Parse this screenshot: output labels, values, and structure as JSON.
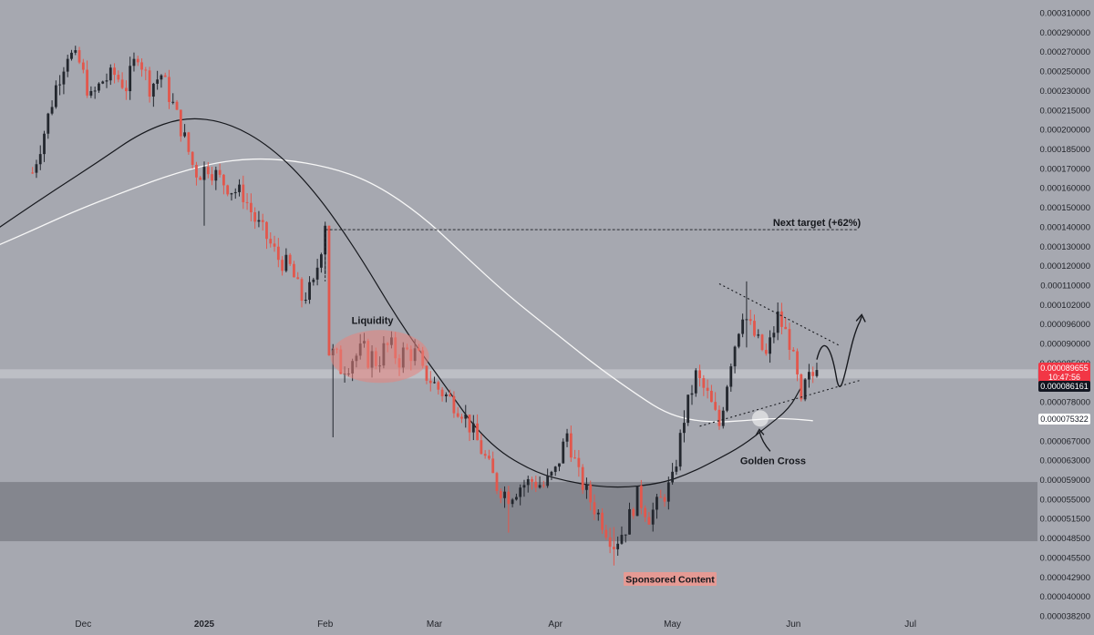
{
  "chart_data": {
    "type": "candlestick",
    "title": "",
    "y_axis": {
      "scale": "log",
      "side": "right",
      "ticks": [
        "0.000310000",
        "0.000290000",
        "0.000270000",
        "0.000250000",
        "0.000230000",
        "0.000215000",
        "0.000200000",
        "0.000185000",
        "0.000170000",
        "0.000160000",
        "0.000150000",
        "0.000140000",
        "0.000130000",
        "0.000120000",
        "0.000110000",
        "0.000102000",
        "0.000096000",
        "0.000090000",
        "0.000085000",
        "0.000081000",
        "0.000078000",
        "0.000072000",
        "0.000067000",
        "0.000063000",
        "0.000059000",
        "0.000055000",
        "0.000051500",
        "0.000048500",
        "0.000045500",
        "0.000042900",
        "0.000040000",
        "0.000038200"
      ]
    },
    "x_axis": {
      "ticks": [
        {
          "label": "Dec",
          "day": -31,
          "bold": false
        },
        {
          "label": "2025",
          "day": 0,
          "bold": true
        },
        {
          "label": "Feb",
          "day": 31,
          "bold": false
        },
        {
          "label": "Mar",
          "day": 59,
          "bold": false
        },
        {
          "label": "Apr",
          "day": 90,
          "bold": false
        },
        {
          "label": "May",
          "day": 120,
          "bold": false
        },
        {
          "label": "Jun",
          "day": 151,
          "bold": false
        },
        {
          "label": "Jul",
          "day": 181,
          "bold": false
        }
      ]
    },
    "price_labels": {
      "current": {
        "value": "0.000089655",
        "countdown": "10:47:56",
        "color": "#f23645"
      },
      "level1": {
        "value": "0.000086161",
        "color": "#131722"
      },
      "level2": {
        "value": "0.000075322",
        "color": "#ffffff"
      }
    },
    "annotations": {
      "next_target": "Next target (+62%)",
      "liquidity": "Liquidity",
      "golden_cross": "Golden Cross",
      "sponsored": "Sponsored Content"
    },
    "levels": {
      "target_price": 0.000146,
      "resistance_band": 8.85e-05,
      "support_zone": [
        4.95e-05,
        6.08e-05
      ]
    },
    "colors": {
      "up": "#23272e",
      "down": "#e2574c",
      "ma_dark": "#17191e",
      "ma_light": "#f7f7f7",
      "background": "#a6a8b0",
      "zone": "#84868e"
    },
    "candles": [
      {
        "x": [
          -44,
          -41,
          -38,
          -35,
          -32,
          -29,
          -26,
          -23,
          -20,
          -17,
          -14,
          -11,
          -8,
          -5,
          -2
        ],
        "c": [
          0.000178,
          0.000205,
          0.00024,
          0.00027,
          0.00026,
          0.00023,
          0.000245,
          0.00025,
          0.00024,
          0.00027,
          0.00024,
          0.00025,
          0.000225,
          0.0002,
          0.000175
        ]
      },
      {
        "x": [
          -1,
          1,
          4,
          7,
          10,
          13,
          16,
          19,
          22,
          25,
          28,
          31
        ],
        "c": [
          0.000178,
          0.000182,
          0.000174,
          0.000168,
          0.000165,
          0.000151,
          0.000142,
          0.000132,
          0.000128,
          0.000115,
          0.00012,
          0.000148
        ]
      },
      {
        "x": [
          32,
          35,
          38,
          41,
          44,
          47,
          50,
          53,
          56
        ],
        "c": [
          9.6e-05,
          9.1e-05,
          9.4e-05,
          9.5e-05,
          9.3e-05,
          9.7e-05,
          9.4e-05,
          9.6e-05,
          9.1e-05
        ]
      },
      {
        "x": [
          57,
          60,
          63,
          66,
          69,
          72,
          75,
          78,
          81,
          84,
          87,
          90,
          93,
          96,
          99,
          102,
          105,
          108,
          111,
          114,
          117,
          120,
          123,
          126,
          129,
          132,
          135,
          138,
          141,
          144,
          147,
          150,
          153
        ],
        "c": [
          8.8e-05,
          8.4e-05,
          8.1e-05,
          7.8e-05,
          7.2e-05,
          6.6e-05,
          6e-05,
          5.8e-05,
          6e-05,
          6.1e-05,
          6e-05,
          6.3e-05,
          7.2e-05,
          6.2e-05,
          5.7e-05,
          5.3e-05,
          4.9e-05,
          5.2e-05,
          5.8e-05,
          5.4e-05,
          5.7e-05,
          6.1e-05,
          7.6e-05,
          8.8e-05,
          8.2e-05,
          7.4e-05,
          9.3e-05,
          0.00011,
          0.000101,
          9.4e-05,
          0.000108,
          9.9e-05,
          8.1e-05
        ]
      },
      {
        "x": [
          154,
          155,
          156,
          157
        ],
        "c": [
          8.5e-05,
          8.7e-05,
          8.8e-05,
          8.97e-05
        ]
      }
    ],
    "ma_dark": {
      "x": [
        -61,
        -49,
        -38,
        -27,
        -16,
        -5,
        6,
        17,
        28,
        39,
        50,
        61,
        72,
        84,
        95,
        106,
        117,
        124,
        131,
        138,
        144,
        150,
        153
      ],
      "y": [
        0.000136,
        0.000152,
        0.000168,
        0.000185,
        0.000205,
        0.000216,
        0.000212,
        0.000195,
        0.000168,
        0.000136,
        0.000106,
        8.6e-05,
        7e-05,
        6.3e-05,
        6.05e-05,
        5.95e-05,
        6.05e-05,
        6.25e-05,
        6.55e-05,
        6.9e-05,
        7.35e-05,
        7.85e-05,
        8.45e-05
      ]
    },
    "ma_light": {
      "x": [
        -61,
        -47,
        -34,
        -20,
        -7,
        6,
        19,
        33,
        44,
        56,
        67,
        78,
        90,
        101,
        112,
        118,
        124,
        131,
        138,
        145,
        151,
        156
      ],
      "y": [
        0.000132,
        0.000143,
        0.000155,
        0.000167,
        0.000178,
        0.000186,
        0.000187,
        0.000181,
        0.000171,
        0.000153,
        0.000133,
        0.000116,
        0.000102,
        9.05e-05,
        8.15e-05,
        7.75e-05,
        7.55e-05,
        7.48e-05,
        7.52e-05,
        7.58e-05,
        7.57e-05,
        7.52e-05
      ]
    }
  }
}
